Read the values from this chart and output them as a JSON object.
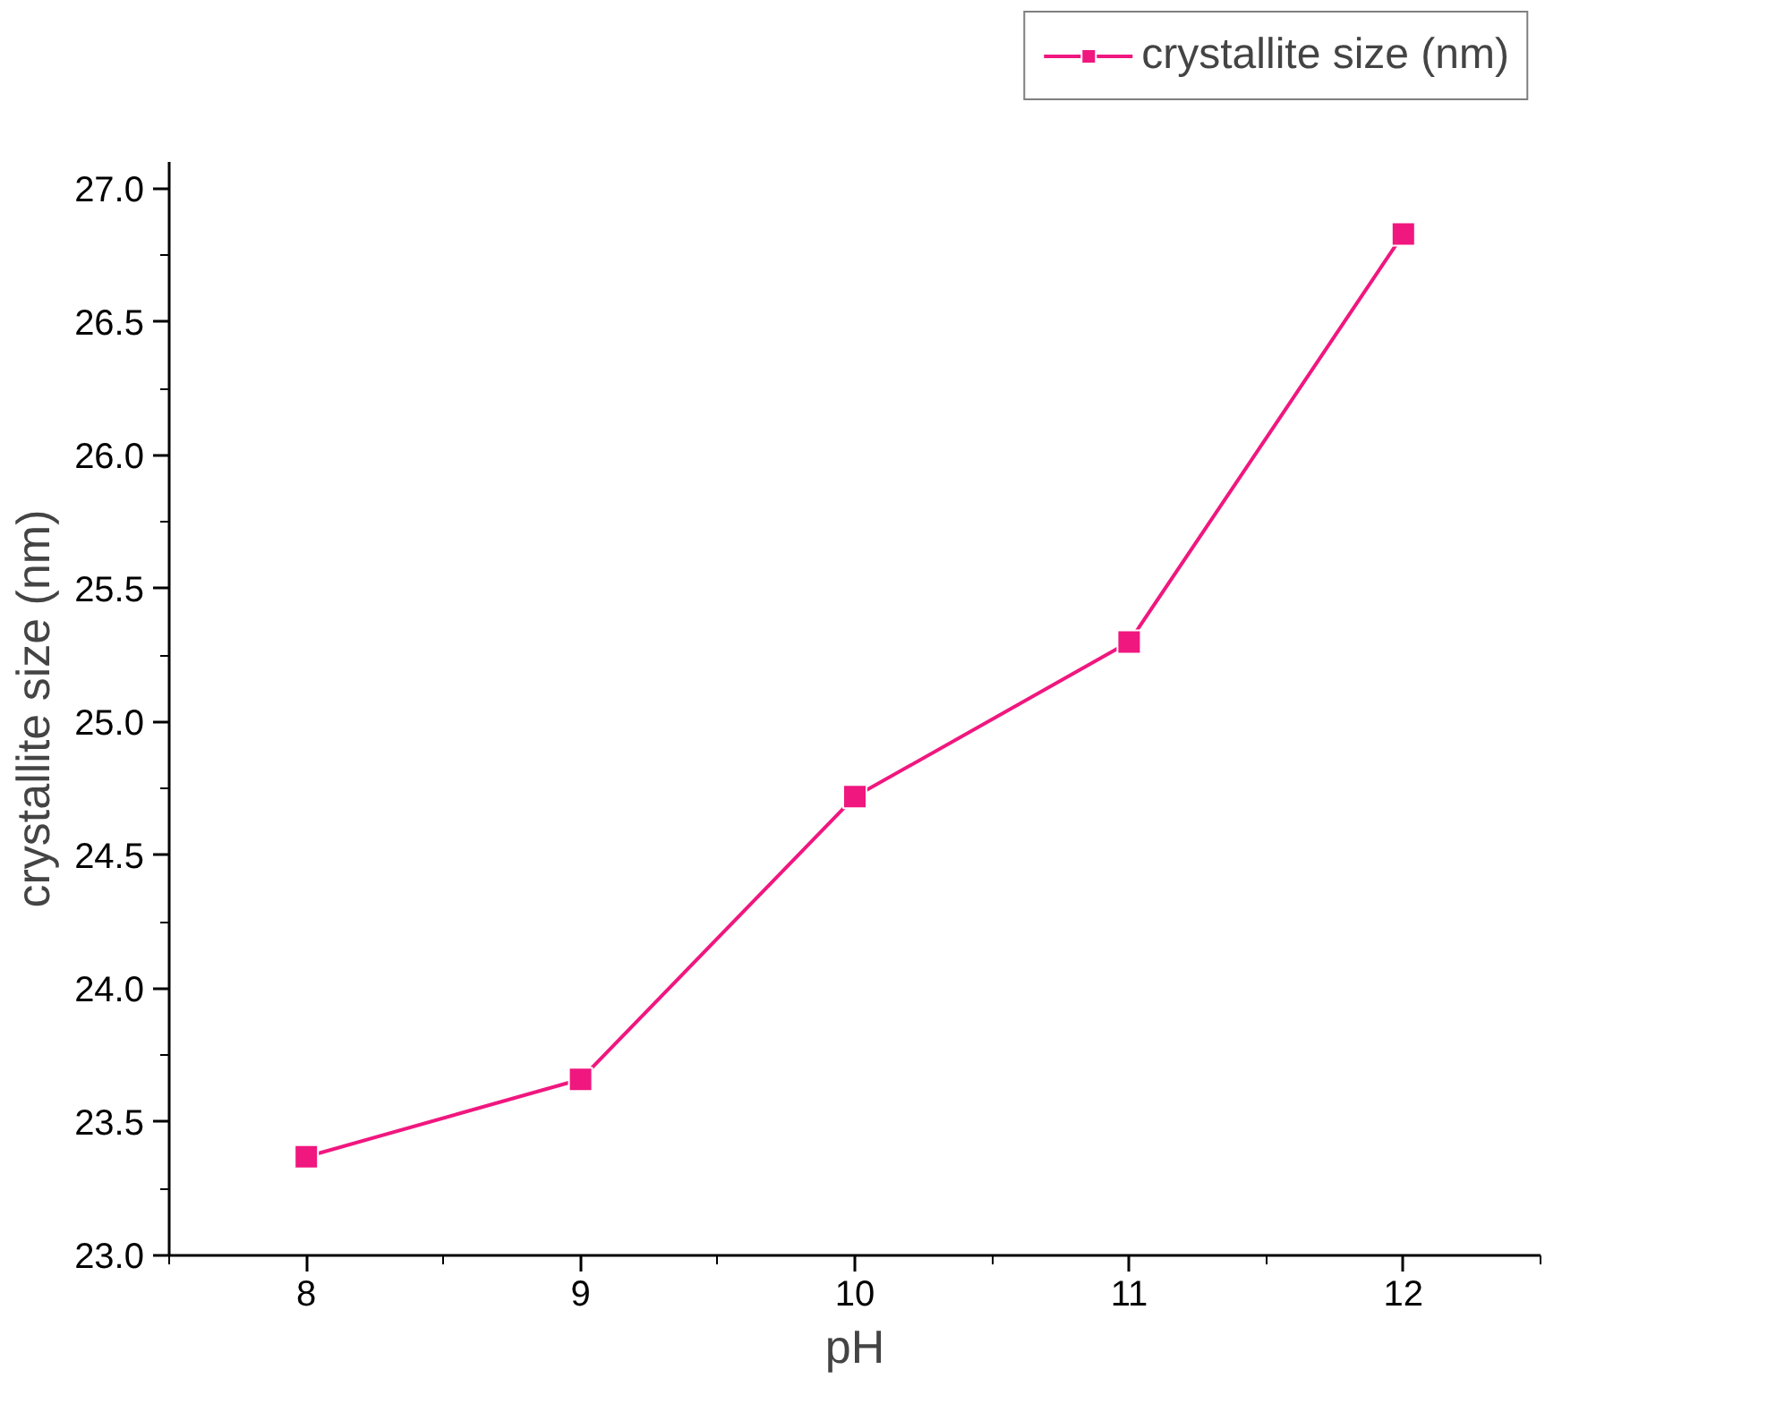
{
  "chart_data": {
    "type": "line",
    "xlabel": "pH",
    "ylabel": "crystallite size (nm)",
    "x": [
      8,
      9,
      10,
      11,
      12
    ],
    "series": [
      {
        "name": "crystallite size (nm)",
        "color": "#f0177f",
        "values": [
          23.37,
          23.66,
          24.72,
          25.3,
          26.83
        ]
      }
    ],
    "xlim": [
      7.5,
      12.5
    ],
    "xticks": [
      8,
      9,
      10,
      11,
      12
    ],
    "ylim": [
      23.0,
      27.1
    ],
    "yticks": [
      {
        "value": 23.0,
        "label": "23.0"
      },
      {
        "value": 23.5,
        "label": "23.5"
      },
      {
        "value": 24.0,
        "label": "24.0"
      },
      {
        "value": 24.5,
        "label": "24.5"
      },
      {
        "value": 25.0,
        "label": "25.0"
      },
      {
        "value": 25.5,
        "label": "25.5"
      },
      {
        "value": 26.0,
        "label": "26.0"
      },
      {
        "value": 26.5,
        "label": "26.5"
      },
      {
        "value": 27.0,
        "label": "27.0"
      }
    ],
    "grid": false,
    "legend": "top right",
    "marker": "square",
    "line_style": "solid"
  }
}
